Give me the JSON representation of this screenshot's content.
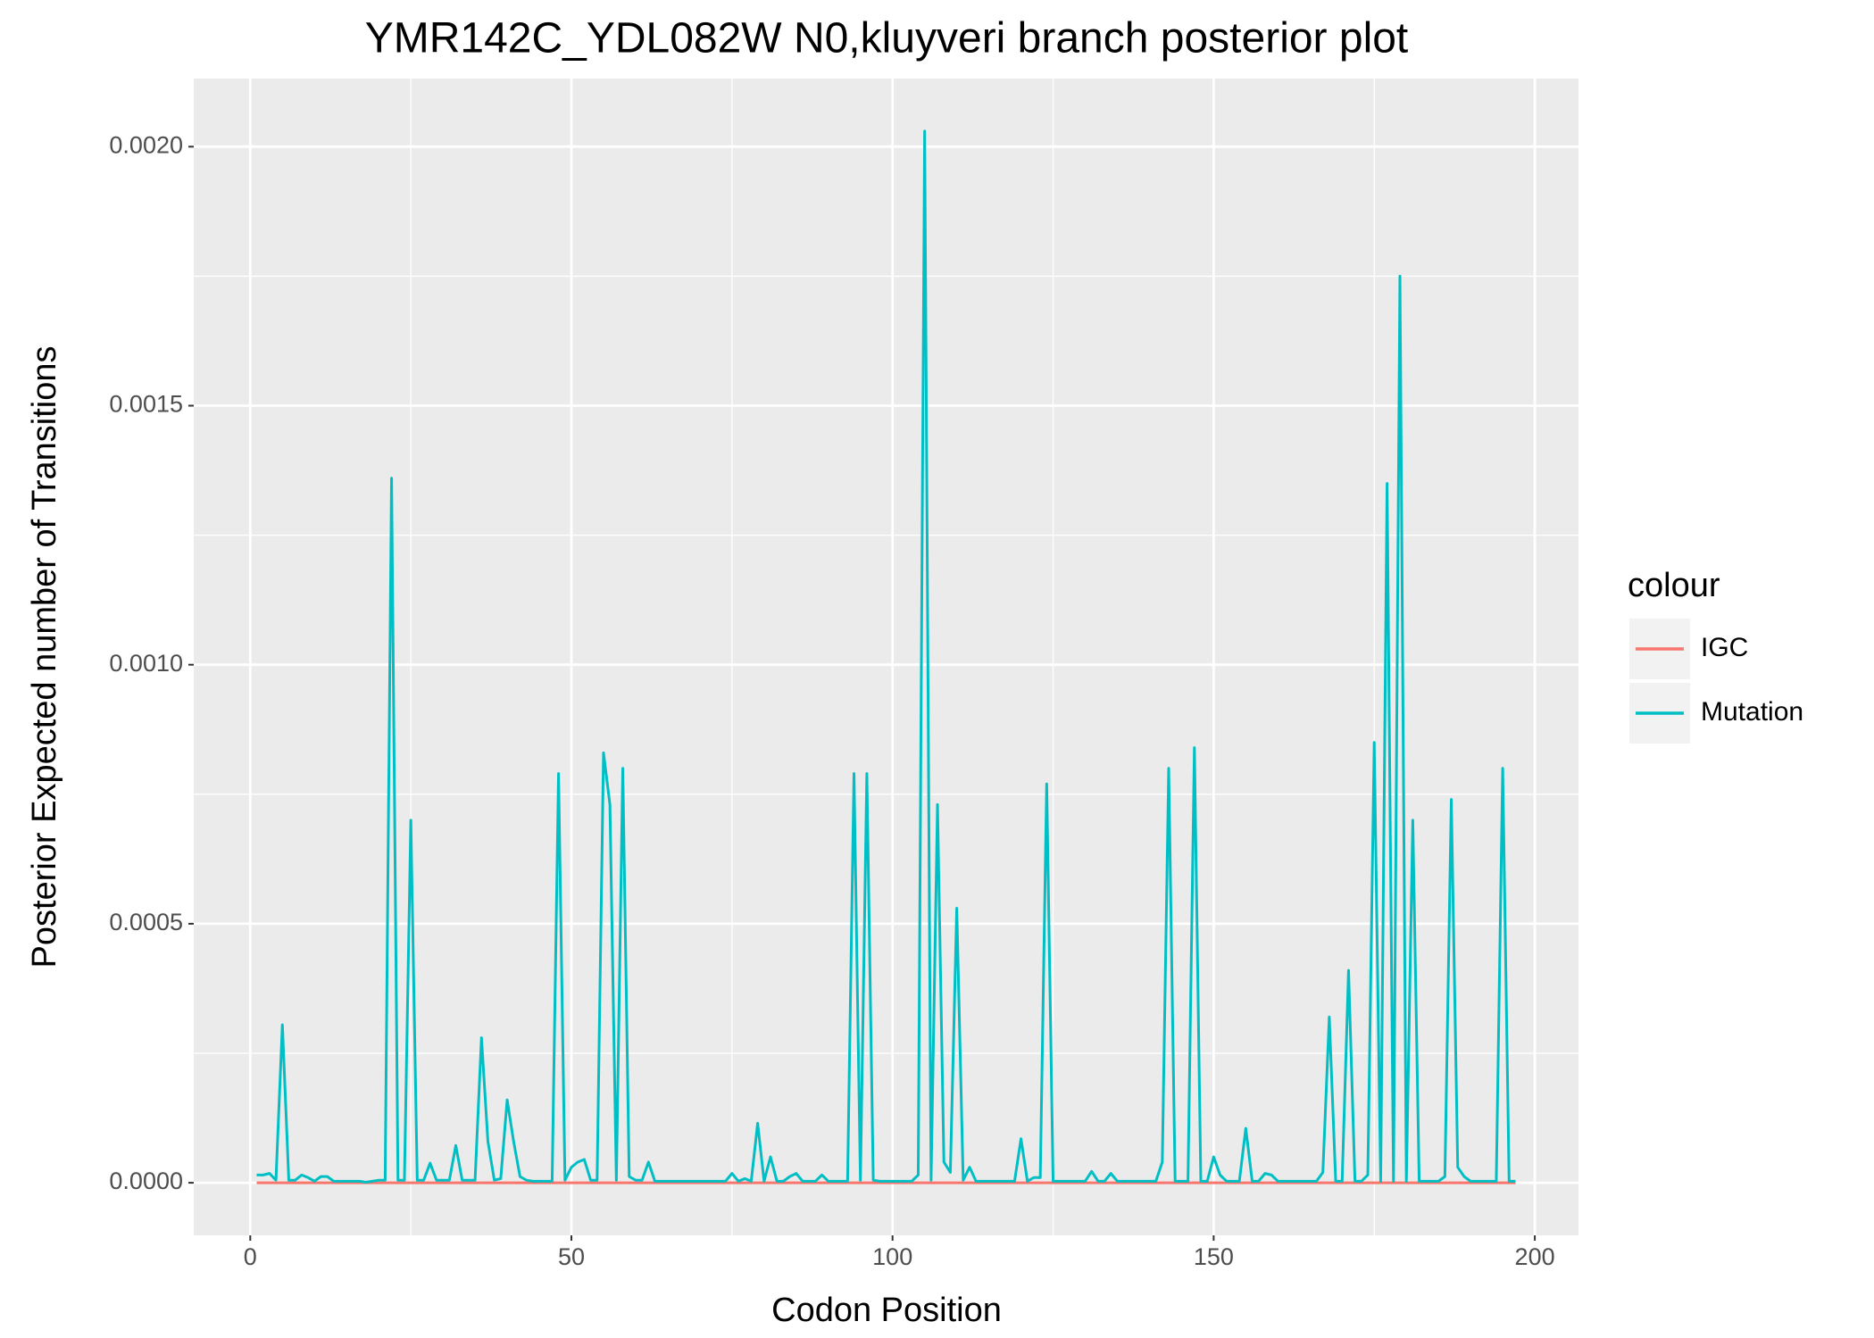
{
  "chart_data": {
    "type": "line",
    "title": "YMR142C_YDL082W N0,kluyveri branch posterior plot",
    "x_label": "Codon Position",
    "y_label": "Posterior Expected number of Transitions",
    "legend_title": "colour",
    "legend_position": "right",
    "grid": true,
    "xlim": [
      -8.8,
      206.8
    ],
    "ylim": [
      -0.0001015,
      0.0021315
    ],
    "xticks": [
      0,
      50,
      100,
      150,
      200
    ],
    "yticks": [
      {
        "value": 0,
        "label": "0.0000"
      },
      {
        "value": 0.0005,
        "label": "0.0005"
      },
      {
        "value": 0.001,
        "label": "0.0010"
      },
      {
        "value": 0.0015,
        "label": "0.0015"
      },
      {
        "value": 0.002,
        "label": "0.0020"
      }
    ],
    "x": [
      1,
      2,
      3,
      4,
      5,
      6,
      7,
      8,
      9,
      10,
      11,
      12,
      13,
      14,
      15,
      16,
      17,
      18,
      19,
      20,
      21,
      22,
      23,
      24,
      25,
      26,
      27,
      28,
      29,
      30,
      31,
      32,
      33,
      34,
      35,
      36,
      37,
      38,
      39,
      40,
      41,
      42,
      43,
      44,
      45,
      46,
      47,
      48,
      49,
      50,
      51,
      52,
      53,
      54,
      55,
      56,
      57,
      58,
      59,
      60,
      61,
      62,
      63,
      64,
      65,
      66,
      67,
      68,
      69,
      70,
      71,
      72,
      73,
      74,
      75,
      76,
      77,
      78,
      79,
      80,
      81,
      82,
      83,
      84,
      85,
      86,
      87,
      88,
      89,
      90,
      91,
      92,
      93,
      94,
      95,
      96,
      97,
      98,
      99,
      100,
      101,
      102,
      103,
      104,
      105,
      106,
      107,
      108,
      109,
      110,
      111,
      112,
      113,
      114,
      115,
      116,
      117,
      118,
      119,
      120,
      121,
      122,
      123,
      124,
      125,
      126,
      127,
      128,
      129,
      130,
      131,
      132,
      133,
      134,
      135,
      136,
      137,
      138,
      139,
      140,
      141,
      142,
      143,
      144,
      145,
      146,
      147,
      148,
      149,
      150,
      151,
      152,
      153,
      154,
      155,
      156,
      157,
      158,
      159,
      160,
      161,
      162,
      163,
      164,
      165,
      166,
      167,
      168,
      169,
      170,
      171,
      172,
      173,
      174,
      175,
      176,
      177,
      178,
      179,
      180,
      181,
      182,
      183,
      184,
      185,
      186,
      187,
      188,
      189,
      190,
      191,
      192,
      193,
      194,
      195,
      196,
      197
    ],
    "series": [
      {
        "name": "IGC",
        "color": "#F8766D",
        "values": [
          0,
          0,
          0,
          0,
          0,
          0,
          0,
          0,
          0,
          0,
          0,
          0,
          0,
          0,
          0,
          0,
          0,
          0,
          0,
          0,
          0,
          0,
          0,
          0,
          0,
          0,
          0,
          0,
          0,
          0,
          0,
          0,
          0,
          0,
          0,
          0,
          0,
          0,
          0,
          0,
          0,
          0,
          0,
          0,
          0,
          0,
          0,
          0,
          0,
          0,
          0,
          0,
          0,
          0,
          0,
          0,
          0,
          0,
          0,
          0,
          0,
          0,
          0,
          0,
          0,
          0,
          0,
          0,
          0,
          0,
          0,
          0,
          0,
          0,
          0,
          0,
          0,
          0,
          0,
          0,
          0,
          0,
          0,
          0,
          0,
          0,
          0,
          0,
          0,
          0,
          0,
          0,
          0,
          0,
          0,
          0,
          0,
          0,
          0,
          0,
          0,
          0,
          0,
          0,
          0,
          0,
          0,
          0,
          0,
          0,
          0,
          0,
          0,
          0,
          0,
          0,
          0,
          0,
          0,
          0,
          0,
          0,
          0,
          0,
          0,
          0,
          0,
          0,
          0,
          0,
          0,
          0,
          0,
          0,
          0,
          0,
          0,
          0,
          0,
          0,
          0,
          0,
          0,
          0,
          0,
          0,
          0,
          0,
          0,
          0,
          0,
          0,
          0,
          0,
          0,
          0,
          0,
          0,
          0,
          0,
          0,
          0,
          0,
          0,
          0,
          0,
          0,
          0,
          0,
          0,
          0,
          0,
          0,
          0,
          0,
          0,
          0,
          0,
          0,
          0,
          0,
          0,
          0,
          0,
          0,
          0,
          0,
          0,
          0,
          0,
          0,
          0,
          0,
          0,
          0,
          0,
          0
        ]
      },
      {
        "name": "Mutation",
        "color": "#00BFC4",
        "values": [
          1.5e-05,
          1.5e-05,
          1.8e-05,
          5e-06,
          0.000305,
          5e-06,
          5e-06,
          1.5e-05,
          1e-05,
          3e-06,
          1.2e-05,
          1.2e-05,
          3e-06,
          3e-06,
          3e-06,
          3e-06,
          3e-06,
          1e-06,
          3e-06,
          5e-06,
          5e-06,
          0.00136,
          5e-06,
          5e-06,
          0.0007,
          5e-06,
          5e-06,
          3.8e-05,
          5e-06,
          5e-06,
          5e-06,
          7.2e-05,
          5e-06,
          5e-06,
          5e-06,
          0.00028,
          8e-05,
          5e-06,
          8e-06,
          0.00016,
          8e-05,
          1.2e-05,
          5e-06,
          3e-06,
          3e-06,
          3e-06,
          3e-06,
          0.00079,
          5e-06,
          3e-05,
          4e-05,
          4.5e-05,
          5e-06,
          5e-06,
          0.00083,
          0.00073,
          5e-06,
          0.0008,
          1.2e-05,
          5e-06,
          5e-06,
          4e-05,
          3e-06,
          3e-06,
          3e-06,
          3e-06,
          3e-06,
          3e-06,
          3e-06,
          3e-06,
          3e-06,
          3e-06,
          3e-06,
          3e-06,
          1.8e-05,
          3e-06,
          8e-06,
          3e-06,
          0.000115,
          3e-06,
          5e-05,
          3e-06,
          3e-06,
          1.2e-05,
          1.8e-05,
          3e-06,
          3e-06,
          3e-06,
          1.5e-05,
          3e-06,
          3e-06,
          3e-06,
          3e-06,
          0.00079,
          5e-06,
          0.00079,
          5e-06,
          3e-06,
          3e-06,
          3e-06,
          3e-06,
          3e-06,
          3e-06,
          1.5e-05,
          0.00203,
          5e-06,
          0.00073,
          4e-05,
          2e-05,
          0.00053,
          5e-06,
          3e-05,
          3e-06,
          3e-06,
          3e-06,
          3e-06,
          3e-06,
          3e-06,
          3e-06,
          8.5e-05,
          3e-06,
          1e-05,
          1e-05,
          0.00077,
          3e-06,
          3e-06,
          3e-06,
          3e-06,
          3e-06,
          3e-06,
          2.2e-05,
          3e-06,
          3e-06,
          1.8e-05,
          3e-06,
          3e-06,
          3e-06,
          3e-06,
          3e-06,
          3e-06,
          3e-06,
          4e-05,
          0.0008,
          3e-06,
          3e-06,
          3e-06,
          0.00084,
          3e-06,
          3e-06,
          5e-05,
          1.5e-05,
          3e-06,
          3e-06,
          3e-06,
          0.000105,
          3e-06,
          3e-06,
          1.8e-05,
          1.5e-05,
          3e-06,
          3e-06,
          3e-06,
          3e-06,
          3e-06,
          3e-06,
          3e-06,
          2e-05,
          0.00032,
          3e-06,
          3e-06,
          0.00041,
          3e-06,
          3e-06,
          1.5e-05,
          0.00085,
          3e-06,
          0.00135,
          3e-06,
          0.00175,
          3e-06,
          0.0007,
          3e-06,
          3e-06,
          3e-06,
          3e-06,
          1.2e-05,
          0.00074,
          3e-05,
          1.2e-05,
          3e-06,
          3e-06,
          3e-06,
          3e-06,
          3e-06,
          0.0008,
          3e-06,
          3e-06
        ]
      }
    ]
  }
}
